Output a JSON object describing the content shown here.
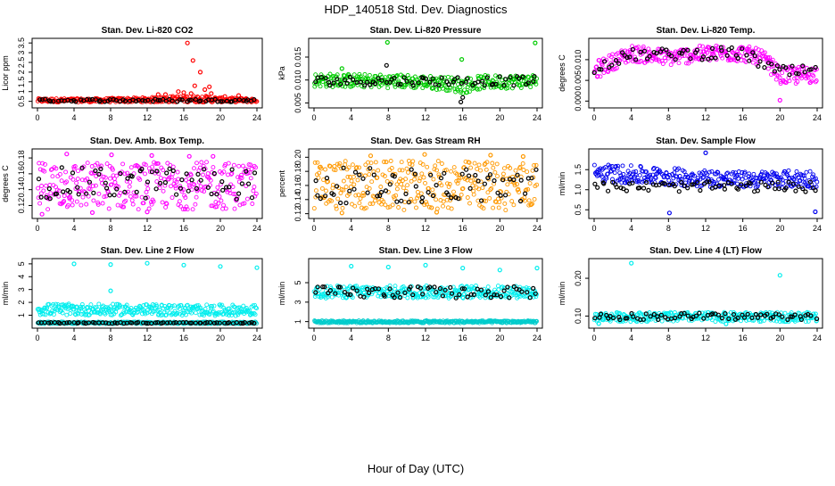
{
  "title": "HDP_140518  Std. Dev. Diagnostics",
  "xlabel": "Hour of Day (UTC)",
  "chart_data": [
    {
      "type": "scatter",
      "title": "Stan. Dev. Li-820 CO2",
      "ylabel": "Licor ppm",
      "xlim": [
        0,
        24
      ],
      "ylim": [
        0.3,
        3.6
      ],
      "xticks": [
        "0",
        "4",
        "8",
        "12",
        "16",
        "20",
        "24"
      ],
      "yticks": [
        "0.5",
        "1",
        "1.5",
        "2",
        "2.5",
        "3",
        "3.5"
      ],
      "series": [
        {
          "color": "#ff0000",
          "band": [
            [
              0,
              0.45,
              0.65
            ],
            [
              6,
              0.45,
              0.65
            ],
            [
              12,
              0.45,
              0.7
            ],
            [
              14,
              0.45,
              0.75
            ],
            [
              16,
              0.45,
              0.8
            ],
            [
              18,
              0.45,
              0.8
            ],
            [
              20,
              0.45,
              0.7
            ],
            [
              24,
              0.45,
              0.65
            ]
          ],
          "outliers": [
            [
              16.4,
              3.5
            ],
            [
              17.0,
              2.6
            ],
            [
              17.8,
              2.0
            ],
            [
              17.2,
              1.3
            ],
            [
              18.3,
              1.1
            ],
            [
              19.0,
              0.9
            ],
            [
              15.4,
              1.0
            ],
            [
              16.0,
              0.95
            ],
            [
              14.0,
              0.85
            ],
            [
              13.2,
              0.85
            ],
            [
              18.8,
              1.25
            ],
            [
              16.8,
              0.9
            ],
            [
              20.5,
              0.75
            ],
            [
              22.0,
              0.8
            ]
          ]
        },
        {
          "color": "#000000",
          "band": [
            [
              0,
              0.48,
              0.62
            ],
            [
              24,
              0.48,
              0.62
            ]
          ],
          "outliers": []
        }
      ]
    },
    {
      "type": "scatter",
      "title": "Stan. Dev. Li-820 Pressure",
      "ylabel": "kPa",
      "xlim": [
        0,
        24
      ],
      "ylim": [
        0.0045,
        0.0185
      ],
      "xticks": [
        "0",
        "4",
        "8",
        "12",
        "16",
        "20",
        "24"
      ],
      "yticks": [
        "0.005",
        "0.010",
        "0.015"
      ],
      "series": [
        {
          "color": "#00cc00",
          "band": [
            [
              0,
              0.0085,
              0.0115
            ],
            [
              6,
              0.0083,
              0.0113
            ],
            [
              10,
              0.0082,
              0.0112
            ],
            [
              14,
              0.0078,
              0.0108
            ],
            [
              16,
              0.007,
              0.0105
            ],
            [
              18,
              0.008,
              0.011
            ],
            [
              24,
              0.0083,
              0.0113
            ]
          ],
          "outliers": [
            [
              7.9,
              0.0182
            ],
            [
              23.8,
              0.0181
            ],
            [
              15.9,
              0.0145
            ],
            [
              3.0,
              0.0125
            ]
          ]
        },
        {
          "color": "#000000",
          "band": [
            [
              0,
              0.0088,
              0.0108
            ],
            [
              24,
              0.0088,
              0.0108
            ]
          ],
          "outliers": [
            [
              7.8,
              0.0132
            ],
            [
              15.8,
              0.0052
            ],
            [
              16.0,
              0.0062
            ]
          ]
        }
      ]
    },
    {
      "type": "scatter",
      "title": "Stan. Dev. Li-820 Temp.",
      "ylabel": "degrees C",
      "xlim": [
        0,
        24
      ],
      "ylim": [
        -0.001,
        0.0145
      ],
      "xticks": [
        "0",
        "4",
        "8",
        "12",
        "16",
        "20",
        "24"
      ],
      "yticks": [
        "0.000",
        "0.005",
        "0.010"
      ],
      "series": [
        {
          "color": "#ff00ff",
          "band": [
            [
              0,
              0.005,
              0.0095
            ],
            [
              2,
              0.0075,
              0.0115
            ],
            [
              4,
              0.0095,
              0.0135
            ],
            [
              8,
              0.0085,
              0.0125
            ],
            [
              12,
              0.0095,
              0.0135
            ],
            [
              16,
              0.0095,
              0.0135
            ],
            [
              18,
              0.0085,
              0.0125
            ],
            [
              19.5,
              0.0055,
              0.0095
            ],
            [
              20,
              0.004,
              0.008
            ],
            [
              22,
              0.004,
              0.0085
            ],
            [
              24,
              0.0045,
              0.0085
            ]
          ],
          "outliers": [
            [
              20.0,
              0.0002
            ],
            [
              18.7,
              0.0105
            ]
          ]
        },
        {
          "color": "#000000",
          "band": [
            [
              0,
              0.0068,
              0.0098
            ],
            [
              4,
              0.0098,
              0.0125
            ],
            [
              12,
              0.01,
              0.013
            ],
            [
              16,
              0.01,
              0.013
            ],
            [
              20,
              0.0055,
              0.0085
            ],
            [
              24,
              0.0055,
              0.0085
            ]
          ],
          "outliers": []
        }
      ]
    },
    {
      "type": "scatter",
      "title": "Stan. Dev. Amb. Box Temp.",
      "ylabel": "degrees C",
      "xlim": [
        0,
        24
      ],
      "ylim": [
        0.107,
        0.188
      ],
      "xticks": [
        "0",
        "4",
        "8",
        "12",
        "16",
        "20",
        "24"
      ],
      "yticks": [
        "0.12",
        "0.14",
        "0.16",
        "0.18"
      ],
      "series": [
        {
          "color": "#ff00ff",
          "band": [
            [
              0,
              0.115,
              0.175
            ],
            [
              24,
              0.115,
              0.175
            ]
          ],
          "outliers": [
            [
              0.5,
              0.109
            ],
            [
              3.2,
              0.185
            ],
            [
              8.1,
              0.184
            ],
            [
              12.5,
              0.183
            ],
            [
              16.6,
              0.182
            ],
            [
              6.0,
              0.111
            ],
            [
              12.0,
              0.112
            ],
            [
              19.2,
              0.182
            ]
          ]
        },
        {
          "color": "#000000",
          "band": [
            [
              0,
              0.128,
              0.168
            ],
            [
              24,
              0.128,
              0.168
            ]
          ],
          "outliers": []
        }
      ]
    },
    {
      "type": "scatter",
      "title": "Stan. Dev. Gas Stream RH",
      "ylabel": "percent",
      "xlim": [
        0,
        24
      ],
      "ylim": [
        0.117,
        0.208
      ],
      "xticks": [
        "0",
        "4",
        "8",
        "12",
        "16",
        "20",
        "24"
      ],
      "yticks": [
        "0.12",
        "0.14",
        "0.16",
        "0.18",
        "0.20"
      ],
      "series": [
        {
          "color": "#ff9900",
          "band": [
            [
              0,
              0.125,
              0.195
            ],
            [
              24,
              0.125,
              0.195
            ]
          ],
          "outliers": [
            [
              3.0,
              0.121
            ],
            [
              6.1,
              0.202
            ],
            [
              11.9,
              0.204
            ],
            [
              19.0,
              0.203
            ],
            [
              22.5,
              0.201
            ],
            [
              13.2,
              0.122
            ]
          ]
        },
        {
          "color": "#000000",
          "band": [
            [
              0,
              0.135,
              0.185
            ],
            [
              24,
              0.135,
              0.185
            ]
          ],
          "outliers": []
        }
      ]
    },
    {
      "type": "scatter",
      "title": "Stan. Dev. Sample Flow",
      "ylabel": "ml/min",
      "xlim": [
        0,
        24
      ],
      "ylim": [
        0.35,
        1.95
      ],
      "xticks": [
        "0",
        "4",
        "8",
        "12",
        "16",
        "20",
        "24"
      ],
      "yticks": [
        "0.5",
        "1.0",
        "1.5"
      ],
      "series": [
        {
          "color": "#0000ee",
          "band": [
            [
              0,
              1.2,
              1.65
            ],
            [
              8,
              1.1,
              1.55
            ],
            [
              16,
              1.05,
              1.45
            ],
            [
              24,
              1.05,
              1.5
            ]
          ],
          "outliers": [
            [
              12.0,
              1.92
            ],
            [
              8.1,
              0.42
            ],
            [
              23.8,
              0.45
            ]
          ]
        },
        {
          "color": "#000000",
          "band": [
            [
              0,
              0.95,
              1.2
            ],
            [
              24,
              0.95,
              1.2
            ]
          ],
          "outliers": []
        }
      ]
    },
    {
      "type": "scatter",
      "title": "Stan. Dev. Line 2 Flow",
      "ylabel": "ml/min",
      "xlim": [
        0,
        24
      ],
      "ylim": [
        0.2,
        5.2
      ],
      "xticks": [
        "0",
        "4",
        "8",
        "12",
        "16",
        "20",
        "24"
      ],
      "yticks": [
        "1",
        "2",
        "3",
        "4",
        "5"
      ],
      "series": [
        {
          "color": "#00eeee",
          "band": [
            [
              0,
              1.0,
              1.9
            ],
            [
              24,
              0.95,
              1.8
            ]
          ],
          "outliers": [
            [
              4.0,
              5.0
            ],
            [
              8.0,
              4.95
            ],
            [
              12.0,
              5.05
            ],
            [
              16.0,
              4.9
            ],
            [
              20.0,
              4.8
            ],
            [
              24.0,
              4.7
            ],
            [
              8.0,
              2.9
            ]
          ]
        },
        {
          "color": "#00cccc",
          "band": [
            [
              0,
              0.33,
              0.48
            ],
            [
              24,
              0.33,
              0.48
            ]
          ],
          "outliers": []
        },
        {
          "color": "#000000",
          "band": [
            [
              0,
              0.36,
              0.44
            ],
            [
              24,
              0.36,
              0.44
            ]
          ],
          "outliers": []
        }
      ]
    },
    {
      "type": "scatter",
      "title": "Stan. Dev. Line 3 Flow",
      "ylabel": "ml/min",
      "xlim": [
        0,
        24
      ],
      "ylim": [
        0.6,
        7.2
      ],
      "xticks": [
        "0",
        "4",
        "8",
        "12",
        "16",
        "20",
        "24"
      ],
      "yticks": [
        "1",
        "3",
        "5"
      ],
      "series": [
        {
          "color": "#00eeee",
          "band": [
            [
              0,
              3.4,
              4.7
            ],
            [
              24,
              3.4,
              4.7
            ]
          ],
          "outliers": [
            [
              4.0,
              6.7
            ],
            [
              8.0,
              6.6
            ],
            [
              12.0,
              6.8
            ],
            [
              16.0,
              6.5
            ],
            [
              20.0,
              6.3
            ],
            [
              24.0,
              6.5
            ]
          ]
        },
        {
          "color": "#00cccc",
          "band": [
            [
              0,
              0.85,
              1.1
            ],
            [
              24,
              0.85,
              1.1
            ]
          ],
          "outliers": []
        },
        {
          "color": "#000000",
          "band": [
            [
              0,
              3.4,
              4.6
            ],
            [
              24,
              3.4,
              4.6
            ]
          ],
          "outliers": []
        }
      ]
    },
    {
      "type": "scatter",
      "title": "Stan. Dev. Line 4 (LT) Flow",
      "ylabel": "ml/min",
      "xlim": [
        0,
        24
      ],
      "ylim": [
        0.075,
        0.245
      ],
      "xticks": [
        "0",
        "4",
        "8",
        "12",
        "16",
        "20",
        "24"
      ],
      "yticks": [
        "0.10",
        "0.20"
      ],
      "series": [
        {
          "color": "#00eeee",
          "band": [
            [
              0,
              0.085,
              0.11
            ],
            [
              24,
              0.085,
              0.11
            ]
          ],
          "outliers": [
            [
              4.0,
              0.24
            ],
            [
              20.0,
              0.208
            ],
            [
              0.5,
              0.08
            ],
            [
              14.2,
              0.079
            ]
          ]
        },
        {
          "color": "#000000",
          "band": [
            [
              0,
              0.09,
              0.108
            ],
            [
              24,
              0.09,
              0.108
            ]
          ],
          "outliers": []
        }
      ]
    }
  ]
}
